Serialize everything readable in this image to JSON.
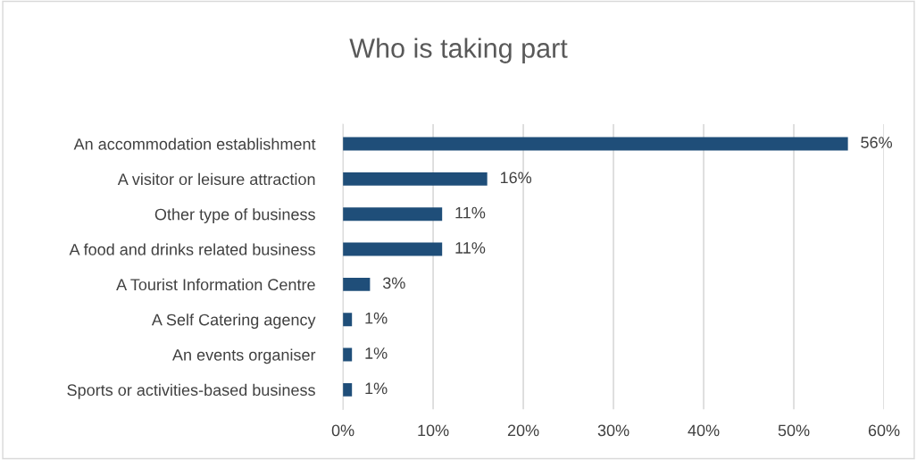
{
  "chart_data": {
    "type": "bar",
    "orientation": "horizontal",
    "title": "Who is taking part",
    "categories": [
      "An accommodation establishment",
      "A visitor or leisure attraction",
      "Other type of business",
      "A food and drinks related business",
      "A Tourist Information Centre",
      "A Self Catering agency",
      "An events organiser",
      "Sports or activities-based business"
    ],
    "values": [
      56,
      16,
      11,
      11,
      3,
      1,
      1,
      1
    ],
    "value_labels": [
      "56%",
      "16%",
      "11%",
      "11%",
      "3%",
      "1%",
      "1%",
      "1%"
    ],
    "color": "#1f4e79",
    "xlim": [
      0,
      60
    ],
    "xticks": [
      {
        "value": 0,
        "label": "0%"
      },
      {
        "value": 10,
        "label": "10%"
      },
      {
        "value": 20,
        "label": "20%"
      },
      {
        "value": 30,
        "label": "30%"
      },
      {
        "value": 40,
        "label": "40%"
      },
      {
        "value": 50,
        "label": "50%"
      },
      {
        "value": 60,
        "label": "60%"
      }
    ],
    "grid": "x"
  }
}
